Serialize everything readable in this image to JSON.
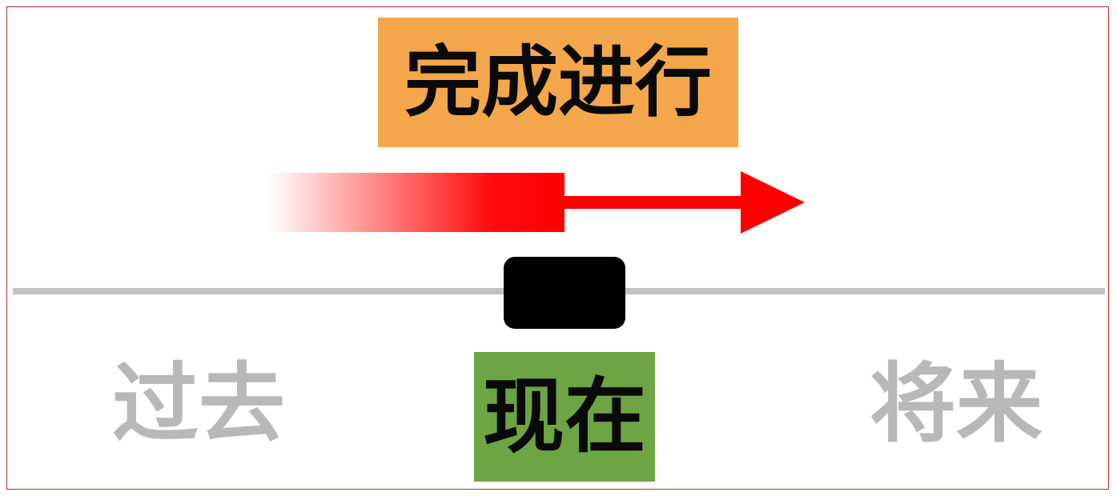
{
  "diagram": {
    "title": "完成进行",
    "now_label": "现在",
    "past_label": "过去",
    "future_label": "将来"
  },
  "colors": {
    "title_bg": "#f4a64a",
    "now_bg": "#6da444",
    "arrow": "#ff0000",
    "timeline": "#c2c2c2",
    "marker": "#000000",
    "muted_text": "#b8b8b8",
    "frame_border": "#c62828"
  }
}
